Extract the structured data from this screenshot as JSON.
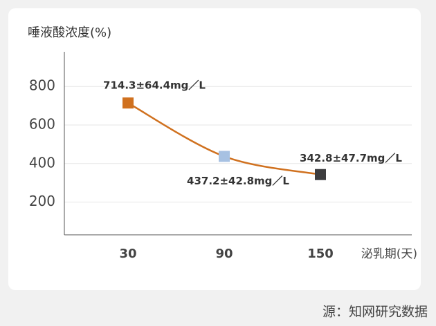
{
  "chart_data": {
    "type": "line",
    "y_axis_label": "唾液酸浓度(%)",
    "x_axis_label": "泌乳期(天)",
    "source": "源：知网研究数据",
    "categories": [
      "30",
      "90",
      "150"
    ],
    "series": [
      {
        "color": "#d0711f",
        "values": [
          714.3,
          437.2,
          342.8
        ],
        "value_labels": [
          "714.3±64.4mg／L",
          "437.2±42.8mg／L",
          "342.8±47.7mg／L"
        ],
        "marker_colors": [
          "#d0711f",
          "#a7c1e2",
          "#3d3d3f"
        ]
      }
    ],
    "ylim": [
      30,
      980
    ],
    "yticks": [
      200,
      400,
      600,
      800
    ],
    "grid": true
  }
}
